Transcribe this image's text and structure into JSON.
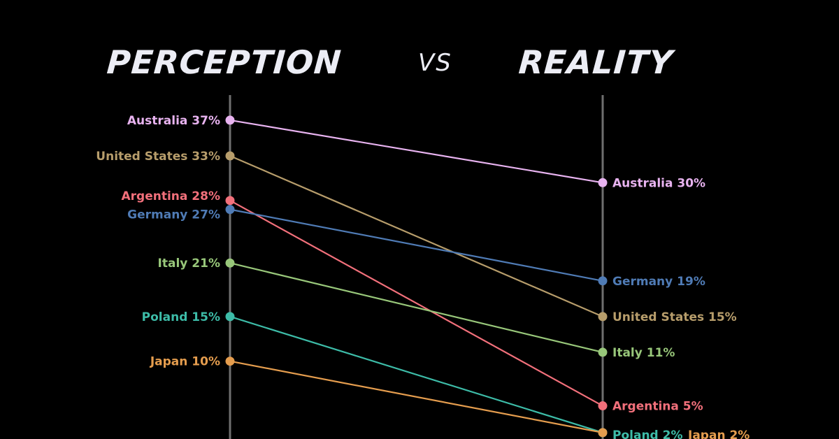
{
  "header": {
    "left_title": "PERCEPTION",
    "vs": "VS",
    "right_title": "REALITY"
  },
  "chart_data": {
    "type": "line",
    "subtype": "slope",
    "categories": [
      "Perception",
      "Reality"
    ],
    "ylim": [
      2,
      37
    ],
    "grid": false,
    "series": [
      {
        "name": "Australia",
        "values": [
          37,
          30
        ],
        "color": "#e8b3f0"
      },
      {
        "name": "United States",
        "values": [
          33,
          15
        ],
        "color": "#b79d6b"
      },
      {
        "name": "Argentina",
        "values": [
          28,
          5
        ],
        "color": "#f2707b"
      },
      {
        "name": "Germany",
        "values": [
          27,
          19
        ],
        "color": "#4f7bb5"
      },
      {
        "name": "Italy",
        "values": [
          21,
          11
        ],
        "color": "#98c77a"
      },
      {
        "name": "Poland",
        "values": [
          15,
          2
        ],
        "color": "#3dbca8"
      },
      {
        "name": "Japan",
        "values": [
          10,
          2
        ],
        "color": "#e59d4e"
      }
    ]
  },
  "colors": {
    "background": "#000000",
    "axis": "#6f6f6f",
    "title": "#ecedf5"
  }
}
